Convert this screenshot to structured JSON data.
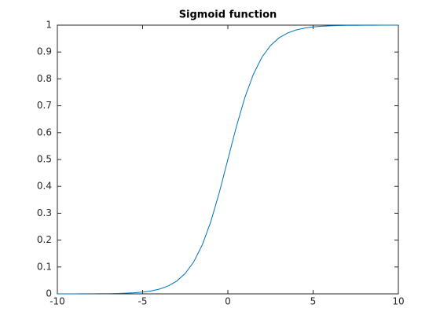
{
  "chart_data": {
    "type": "line",
    "title": "Sigmoid function",
    "x": [
      -10,
      -9.5,
      -9,
      -8.5,
      -8,
      -7.5,
      -7,
      -6.5,
      -6,
      -5.5,
      -5,
      -4.5,
      -4,
      -3.5,
      -3,
      -2.5,
      -2,
      -1.5,
      -1,
      -0.5,
      0,
      0.5,
      1,
      1.5,
      2,
      2.5,
      3,
      3.5,
      4,
      4.5,
      5,
      5.5,
      6,
      6.5,
      7,
      7.5,
      8,
      8.5,
      9,
      9.5,
      10
    ],
    "series": [
      {
        "color": "#0072bd",
        "values": [
          0.0,
          0.0001,
          0.0001,
          0.0002,
          0.0003,
          0.0006,
          0.0009,
          0.0015,
          0.0025,
          0.0041,
          0.0067,
          0.011,
          0.018,
          0.0293,
          0.0474,
          0.0759,
          0.1192,
          0.1824,
          0.2689,
          0.3775,
          0.5,
          0.6225,
          0.7311,
          0.8176,
          0.8808,
          0.9241,
          0.9526,
          0.9707,
          0.982,
          0.989,
          0.9933,
          0.9959,
          0.9975,
          0.9985,
          0.9991,
          0.9994,
          0.9997,
          0.9998,
          0.9999,
          0.9999,
          1.0
        ]
      }
    ],
    "xlim": [
      -10,
      10
    ],
    "xticks": [
      -10,
      -5,
      0,
      5,
      10
    ],
    "ylim": [
      0,
      1
    ],
    "yticks": [
      0,
      0.1,
      0.2,
      0.3,
      0.4,
      0.5,
      0.6,
      0.7,
      0.8,
      0.9,
      1
    ],
    "grid": false
  }
}
